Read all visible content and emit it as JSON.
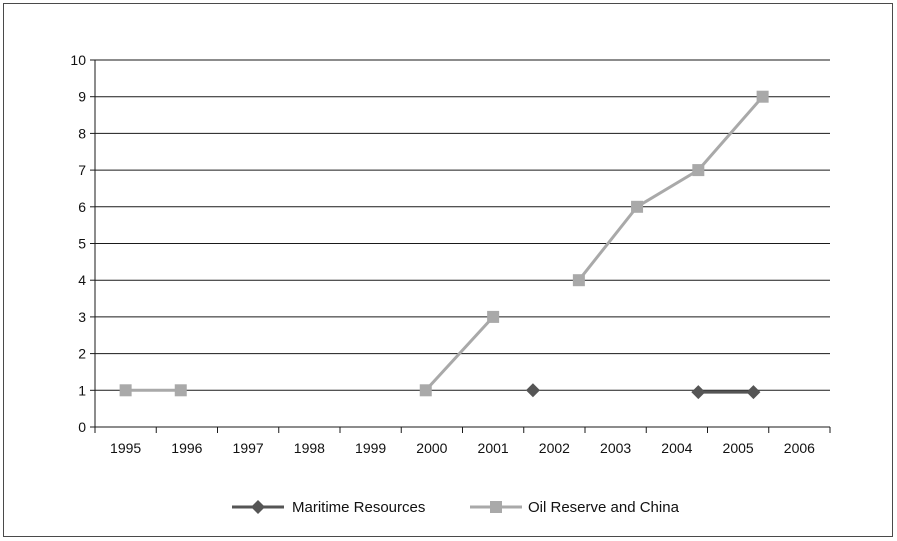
{
  "chart_data": {
    "type": "line",
    "categories": [
      "1995",
      "1996",
      "1997",
      "1998",
      "1999",
      "2000",
      "2001",
      "2002",
      "2003",
      "2004",
      "2005",
      "2006"
    ],
    "ylim": [
      0,
      10
    ],
    "yticks": [
      0,
      1,
      2,
      3,
      4,
      5,
      6,
      7,
      8,
      9,
      10
    ],
    "grid": true,
    "legend_position": "bottom",
    "series": [
      {
        "name": "Maritime Resources",
        "color": "#555555",
        "marker": "diamond",
        "points": [
          {
            "x": 2001.65,
            "y": 1
          },
          {
            "x": 2004.35,
            "y": 0.95
          },
          {
            "x": 2005.25,
            "y": 0.95
          }
        ],
        "segments": [
          [
            1,
            2
          ]
        ]
      },
      {
        "name": "Oil Reserve and China",
        "color": "#a9a9a9",
        "marker": "square",
        "points": [
          {
            "x": 1995.0,
            "y": 1
          },
          {
            "x": 1995.9,
            "y": 1
          },
          {
            "x": 1999.9,
            "y": 1
          },
          {
            "x": 2001.0,
            "y": 3
          },
          {
            "x": 2002.4,
            "y": 4
          },
          {
            "x": 2003.35,
            "y": 6
          },
          {
            "x": 2004.35,
            "y": 7
          },
          {
            "x": 2005.4,
            "y": 9
          }
        ],
        "segments": [
          [
            0,
            1
          ],
          [
            2,
            3
          ],
          [
            4,
            5
          ],
          [
            5,
            6
          ],
          [
            6,
            7
          ]
        ]
      }
    ]
  }
}
